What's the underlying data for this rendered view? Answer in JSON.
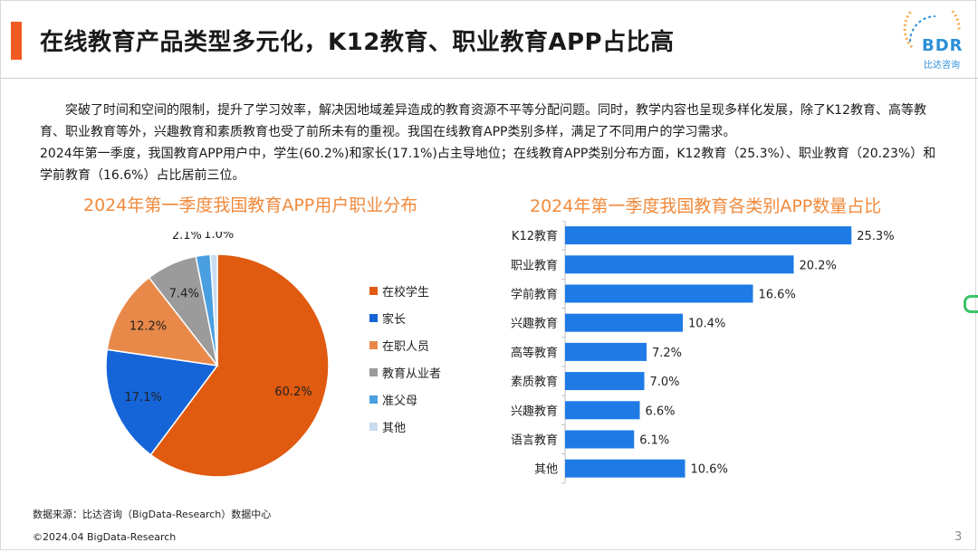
{
  "header": {
    "title": "在线教育产品类型多元化，K12教育、职业教育APP占比高",
    "logo_text": "BDR",
    "logo_subtext": "比达咨询"
  },
  "body": {
    "paragraph_1": "突破了时间和空间的限制，提升了学习效率，解决因地域差异造成的教育资源不平等分配问题。同时，教学内容也呈现多样化发展，除了K12教育、高等教育、职业教育等外，兴趣教育和素质教育也受了前所未有的重视。我国在线教育APP类别多样，满足了不同用户的学习需求。",
    "paragraph_2": "2024年第一季度，我国教育APP用户中，学生(60.2%)和家长(17.1%)占主导地位；在线教育APP类别分布方面，K12教育（25.3%）、职业教育（20.23%）和学前教育（16.6%）占比居前三位。"
  },
  "colors": {
    "accent": "#f15a22",
    "chart_title": "#f08a3c",
    "bar": "#1e7be6",
    "logo": "#2b8fd8"
  },
  "chart_data": [
    {
      "type": "pie",
      "title": "2024年第一季度我国教育APP用户职业分布",
      "categories": [
        "在校学生",
        "家长",
        "在职人员",
        "教育从业者",
        "准父母",
        "其他"
      ],
      "values": [
        60.2,
        17.1,
        12.2,
        7.4,
        2.1,
        1.0
      ],
      "labels": [
        "60.2%",
        "17.1%",
        "12.2%",
        "7.4%",
        "2.1%",
        "1.0%"
      ],
      "colors": [
        "#e05a10",
        "#1565d8",
        "#e8894a",
        "#9b9b9b",
        "#4a9fe0",
        "#c9dcf2"
      ],
      "legend": "right"
    },
    {
      "type": "bar",
      "orientation": "horizontal",
      "title": "2024年第一季度我国教育各类别APP数量占比",
      "categories": [
        "K12教育",
        "职业教育",
        "学前教育",
        "兴趣教育",
        "高等教育",
        "素质教育",
        "兴趣教育",
        "语言教育",
        "其他"
      ],
      "values": [
        25.3,
        20.2,
        16.6,
        10.4,
        7.2,
        7.0,
        6.6,
        6.1,
        10.6
      ],
      "labels": [
        "25.3%",
        "20.2%",
        "16.6%",
        "10.4%",
        "7.2%",
        "7.0%",
        "6.6%",
        "6.1%",
        "10.6%"
      ],
      "xlim": [
        0,
        30
      ],
      "grid": false
    }
  ],
  "footer": {
    "source": "数据来源：比达咨询（BigData-Research）数据中心",
    "copyright": "©2024.04 BigData-Research",
    "page_number": "3"
  }
}
